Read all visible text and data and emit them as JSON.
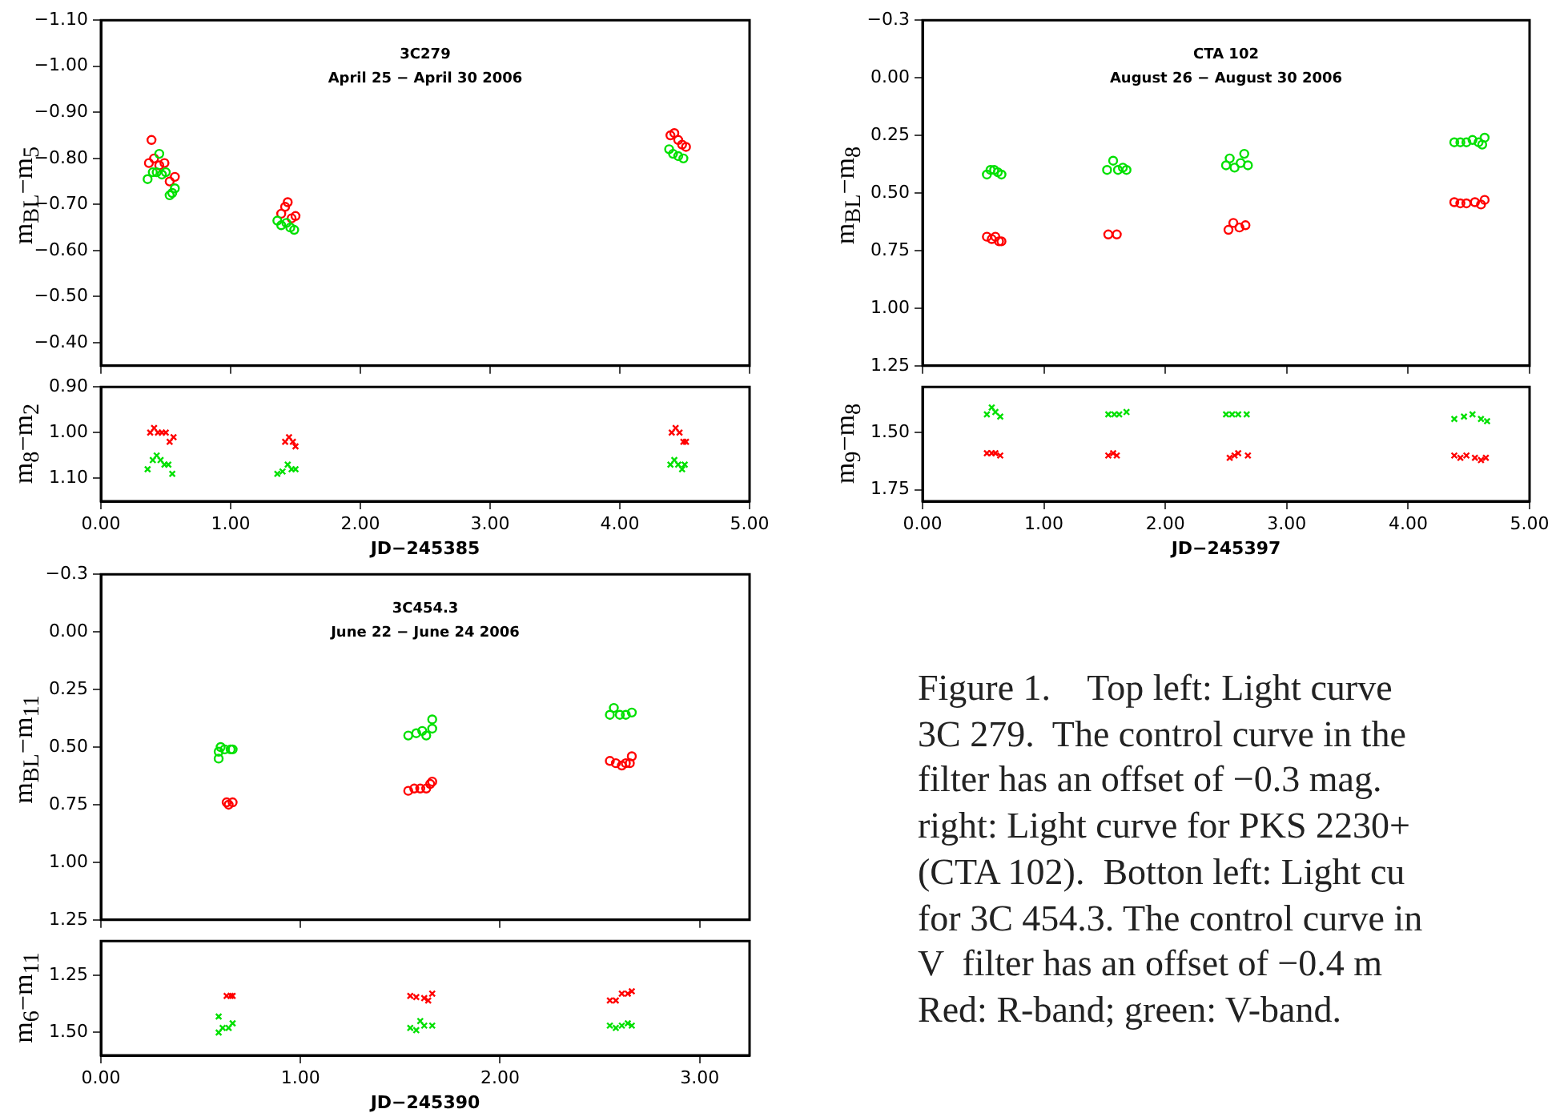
{
  "chart_data": [
    {
      "type": "scatter",
      "title": "3C279",
      "subtitle": "April 25 − April 30 2006",
      "ylabel": "m$_{BL}$−m$_{5}$",
      "marker": "circle",
      "tick_labels": "y",
      "grid": false,
      "xlim": [
        0,
        5
      ],
      "xticks": [
        {
          "value": 0,
          "label": null
        },
        {
          "value": 1,
          "label": null
        },
        {
          "value": 2,
          "label": null
        },
        {
          "value": 3,
          "label": null
        },
        {
          "value": 4,
          "label": null
        },
        {
          "value": 5,
          "label": null
        }
      ],
      "ylim": [
        -0.35,
        -1.1
      ],
      "yticks": [
        {
          "value": -1.1,
          "label": "−1.10"
        },
        {
          "value": -1.0,
          "label": "−1.00"
        },
        {
          "value": -0.9,
          "label": "−0.90"
        },
        {
          "value": -0.8,
          "label": "−0.80"
        },
        {
          "value": -0.7,
          "label": "−0.70"
        },
        {
          "value": -0.6,
          "label": "−0.60"
        },
        {
          "value": -0.5,
          "label": "−0.50"
        },
        {
          "value": -0.4,
          "label": "−0.40"
        }
      ],
      "series": [
        {
          "color": "#00e000",
          "x": [
            0.36,
            0.4,
            0.43,
            0.45,
            0.47,
            0.5,
            0.53,
            0.55,
            0.57,
            1.36,
            1.39,
            1.43,
            1.46,
            1.49,
            4.38,
            4.41,
            4.45,
            4.49
          ],
          "values": [
            -0.755,
            -0.77,
            -0.77,
            -0.81,
            -0.765,
            -0.77,
            -0.72,
            -0.725,
            -0.735,
            -0.665,
            -0.655,
            -0.66,
            -0.65,
            -0.645,
            -0.82,
            -0.81,
            -0.805,
            -0.8
          ]
        },
        {
          "color": "#ff0000",
          "x": [
            0.37,
            0.39,
            0.41,
            0.45,
            0.49,
            0.53,
            0.57,
            1.39,
            1.42,
            1.44,
            1.47,
            1.5,
            4.39,
            4.42,
            4.45,
            4.48,
            4.51
          ],
          "values": [
            -0.79,
            -0.84,
            -0.8,
            -0.785,
            -0.79,
            -0.75,
            -0.76,
            -0.68,
            -0.695,
            -0.705,
            -0.67,
            -0.675,
            -0.85,
            -0.855,
            -0.84,
            -0.83,
            -0.825
          ]
        }
      ]
    },
    {
      "type": "scatter",
      "xlabel": "JD−245385",
      "ylabel": "m$_{8}$−m$_{2}$",
      "marker": "cross",
      "grid": false,
      "xlim": [
        0,
        5
      ],
      "xticks": [
        {
          "value": 0,
          "label": "0.00"
        },
        {
          "value": 1,
          "label": "1.00"
        },
        {
          "value": 2,
          "label": "2.00"
        },
        {
          "value": 3,
          "label": "3.00"
        },
        {
          "value": 4,
          "label": "4.00"
        },
        {
          "value": 5,
          "label": "5.00"
        }
      ],
      "ylim": [
        1.15,
        0.9
      ],
      "yticks": [
        {
          "value": 0.9,
          "label": "0.90"
        },
        {
          "value": 1.0,
          "label": "1.00"
        },
        {
          "value": 1.1,
          "label": "1.10"
        }
      ],
      "series": [
        {
          "color": "#00e000",
          "x": [
            0.36,
            0.4,
            0.43,
            0.46,
            0.49,
            0.52,
            0.55,
            1.36,
            1.4,
            1.44,
            1.47,
            1.5,
            4.39,
            4.42,
            4.45,
            4.48,
            4.5
          ],
          "values": [
            1.08,
            1.06,
            1.05,
            1.06,
            1.07,
            1.07,
            1.09,
            1.09,
            1.085,
            1.07,
            1.08,
            1.08,
            1.07,
            1.06,
            1.07,
            1.08,
            1.07
          ]
        },
        {
          "color": "#ff0000",
          "x": [
            0.38,
            0.41,
            0.44,
            0.47,
            0.5,
            0.53,
            0.56,
            1.42,
            1.45,
            1.48,
            1.5,
            4.4,
            4.43,
            4.46,
            4.49,
            4.51
          ],
          "values": [
            1.0,
            0.99,
            1.0,
            1.0,
            1.0,
            1.02,
            1.01,
            1.02,
            1.01,
            1.02,
            1.03,
            1.0,
            0.99,
            1.0,
            1.02,
            1.02
          ]
        }
      ]
    },
    {
      "type": "scatter",
      "title": "CTA 102",
      "subtitle": "August 26 − August 30 2006",
      "ylabel": "m$_{BL}$−m$_{8}$",
      "marker": "circle",
      "tick_labels": "y",
      "grid": false,
      "xlim": [
        0,
        5
      ],
      "xticks": [
        {
          "value": 0,
          "label": null
        },
        {
          "value": 1,
          "label": null
        },
        {
          "value": 2,
          "label": null
        },
        {
          "value": 3,
          "label": null
        },
        {
          "value": 4,
          "label": null
        },
        {
          "value": 5,
          "label": null
        }
      ],
      "ylim": [
        1.25,
        -0.25
      ],
      "yticks": [
        {
          "value": -0.25,
          "label": "−0.3"
        },
        {
          "value": 0,
          "label": "0.00"
        },
        {
          "value": 0.25,
          "label": "0.25"
        },
        {
          "value": 0.5,
          "label": "0.50"
        },
        {
          "value": 0.75,
          "label": "0.75"
        },
        {
          "value": 1.0,
          "label": "1.00"
        },
        {
          "value": 1.25,
          "label": "1.25"
        }
      ],
      "series": [
        {
          "color": "#00e000",
          "x": [
            0.53,
            0.56,
            0.59,
            0.62,
            0.65,
            1.52,
            1.57,
            1.61,
            1.65,
            1.68,
            2.5,
            2.53,
            2.57,
            2.62,
            2.65,
            2.68,
            4.38,
            4.43,
            4.48,
            4.53,
            4.58,
            4.61,
            4.63
          ],
          "values": [
            0.42,
            0.4,
            0.4,
            0.41,
            0.42,
            0.4,
            0.36,
            0.4,
            0.39,
            0.4,
            0.38,
            0.35,
            0.39,
            0.37,
            0.33,
            0.38,
            0.28,
            0.28,
            0.28,
            0.27,
            0.28,
            0.29,
            0.26
          ]
        },
        {
          "color": "#ff0000",
          "x": [
            0.53,
            0.57,
            0.6,
            0.63,
            0.65,
            1.53,
            1.6,
            2.52,
            2.56,
            2.61,
            2.66,
            4.38,
            4.43,
            4.48,
            4.55,
            4.6,
            4.63
          ],
          "values": [
            0.69,
            0.7,
            0.69,
            0.71,
            0.71,
            0.68,
            0.68,
            0.66,
            0.63,
            0.65,
            0.64,
            0.54,
            0.545,
            0.545,
            0.54,
            0.55,
            0.53
          ]
        }
      ]
    },
    {
      "type": "scatter",
      "xlabel": "JD−245397",
      "ylabel": "m$_{9}$−m$_{8}$",
      "marker": "cross",
      "grid": false,
      "xlim": [
        0,
        5
      ],
      "xticks": [
        {
          "value": 0,
          "label": "0.00"
        },
        {
          "value": 1,
          "label": "1.00"
        },
        {
          "value": 2,
          "label": "2.00"
        },
        {
          "value": 3,
          "label": "3.00"
        },
        {
          "value": 4,
          "label": "4.00"
        },
        {
          "value": 5,
          "label": "5.00"
        }
      ],
      "ylim": [
        1.8,
        1.3
      ],
      "yticks": [
        {
          "value": 1.5,
          "label": "1.50"
        },
        {
          "value": 1.75,
          "label": "1.75"
        }
      ],
      "series": [
        {
          "color": "#00e000",
          "x": [
            0.53,
            0.57,
            0.6,
            0.64,
            1.53,
            1.58,
            1.62,
            1.68,
            2.5,
            2.55,
            2.6,
            2.67,
            4.38,
            4.46,
            4.53,
            4.6,
            4.65
          ],
          "values": [
            1.42,
            1.39,
            1.41,
            1.43,
            1.42,
            1.42,
            1.42,
            1.41,
            1.42,
            1.42,
            1.42,
            1.42,
            1.44,
            1.43,
            1.42,
            1.44,
            1.45
          ]
        },
        {
          "color": "#ff0000",
          "x": [
            0.53,
            0.57,
            0.6,
            0.64,
            1.53,
            1.57,
            1.6,
            2.53,
            2.57,
            2.6,
            2.68,
            4.38,
            4.43,
            4.48,
            4.55,
            4.6,
            4.64
          ],
          "values": [
            1.59,
            1.59,
            1.59,
            1.6,
            1.6,
            1.59,
            1.6,
            1.61,
            1.6,
            1.59,
            1.6,
            1.6,
            1.61,
            1.6,
            1.61,
            1.62,
            1.61
          ]
        }
      ]
    },
    {
      "type": "scatter",
      "title": "3C454.3",
      "subtitle": "June 22 − June 24 2006",
      "ylabel": "m$_{BL}$−m$_{11}$",
      "marker": "circle",
      "tick_labels": "y",
      "grid": false,
      "xlim": [
        0,
        3.25
      ],
      "xticks": [
        {
          "value": 0,
          "label": null
        },
        {
          "value": 1,
          "label": null
        },
        {
          "value": 2,
          "label": null
        },
        {
          "value": 3,
          "label": null
        }
      ],
      "ylim": [
        1.25,
        -0.25
      ],
      "yticks": [
        {
          "value": -0.25,
          "label": "−0.3"
        },
        {
          "value": 0,
          "label": "0.00"
        },
        {
          "value": 0.25,
          "label": "0.25"
        },
        {
          "value": 0.5,
          "label": "0.50"
        },
        {
          "value": 0.75,
          "label": "0.75"
        },
        {
          "value": 1.0,
          "label": "1.00"
        },
        {
          "value": 1.25,
          "label": "1.25"
        }
      ],
      "series": [
        {
          "color": "#00e000",
          "x": [
            0.59,
            0.59,
            0.6,
            0.62,
            0.65,
            0.66,
            1.54,
            1.58,
            1.61,
            1.63,
            1.66,
            1.66,
            2.55,
            2.57,
            2.6,
            2.63,
            2.66
          ],
          "values": [
            0.52,
            0.55,
            0.5,
            0.51,
            0.51,
            0.51,
            0.45,
            0.44,
            0.43,
            0.45,
            0.42,
            0.38,
            0.36,
            0.33,
            0.36,
            0.36,
            0.35
          ]
        },
        {
          "color": "#ff0000",
          "x": [
            0.63,
            0.64,
            0.66,
            1.54,
            1.57,
            1.6,
            1.63,
            1.65,
            1.66,
            2.55,
            2.58,
            2.61,
            2.63,
            2.65,
            2.66
          ],
          "values": [
            0.74,
            0.75,
            0.74,
            0.69,
            0.68,
            0.68,
            0.68,
            0.66,
            0.65,
            0.56,
            0.57,
            0.58,
            0.57,
            0.57,
            0.54
          ]
        }
      ]
    },
    {
      "type": "scatter",
      "xlabel": "JD−245390",
      "ylabel": "m$_{6}$−m$_{11}$",
      "marker": "cross",
      "grid": false,
      "xlim": [
        0,
        3.25
      ],
      "xticks": [
        {
          "value": 0,
          "label": "0.00"
        },
        {
          "value": 1,
          "label": "1.00"
        },
        {
          "value": 2,
          "label": "2.00"
        },
        {
          "value": 3,
          "label": "3.00"
        }
      ],
      "ylim": [
        1.6,
        1.1
      ],
      "yticks": [
        {
          "value": 1.25,
          "label": "1.25"
        },
        {
          "value": 1.5,
          "label": "1.50"
        }
      ],
      "series": [
        {
          "color": "#00e000",
          "x": [
            0.59,
            0.59,
            0.61,
            0.64,
            0.66,
            1.55,
            1.58,
            1.6,
            1.62,
            1.66,
            2.55,
            2.58,
            2.61,
            2.64,
            2.66
          ],
          "values": [
            1.5,
            1.43,
            1.48,
            1.48,
            1.46,
            1.48,
            1.49,
            1.45,
            1.47,
            1.47,
            1.47,
            1.48,
            1.47,
            1.46,
            1.47
          ]
        },
        {
          "color": "#ff0000",
          "x": [
            0.63,
            0.65,
            0.66,
            1.55,
            1.58,
            1.62,
            1.64,
            1.66,
            2.55,
            2.58,
            2.61,
            2.64,
            2.66
          ],
          "values": [
            1.34,
            1.34,
            1.34,
            1.34,
            1.345,
            1.35,
            1.36,
            1.33,
            1.36,
            1.36,
            1.33,
            1.33,
            1.32
          ]
        }
      ]
    },
    {
      "type": "other",
      "annotations": [
        "Figure 1.    Top left: Light curve",
        "3C 279.  The control curve in the",
        "filter has an offset of −0.3 mag.",
        "right: Light curve for PKS 2230+",
        "(CTA 102).  Botton left: Light cu",
        "for 3C 454.3. The control curve in",
        "V  filter has an offset of −0.4 m",
        "Red: R-band; green: V-band."
      ]
    }
  ]
}
